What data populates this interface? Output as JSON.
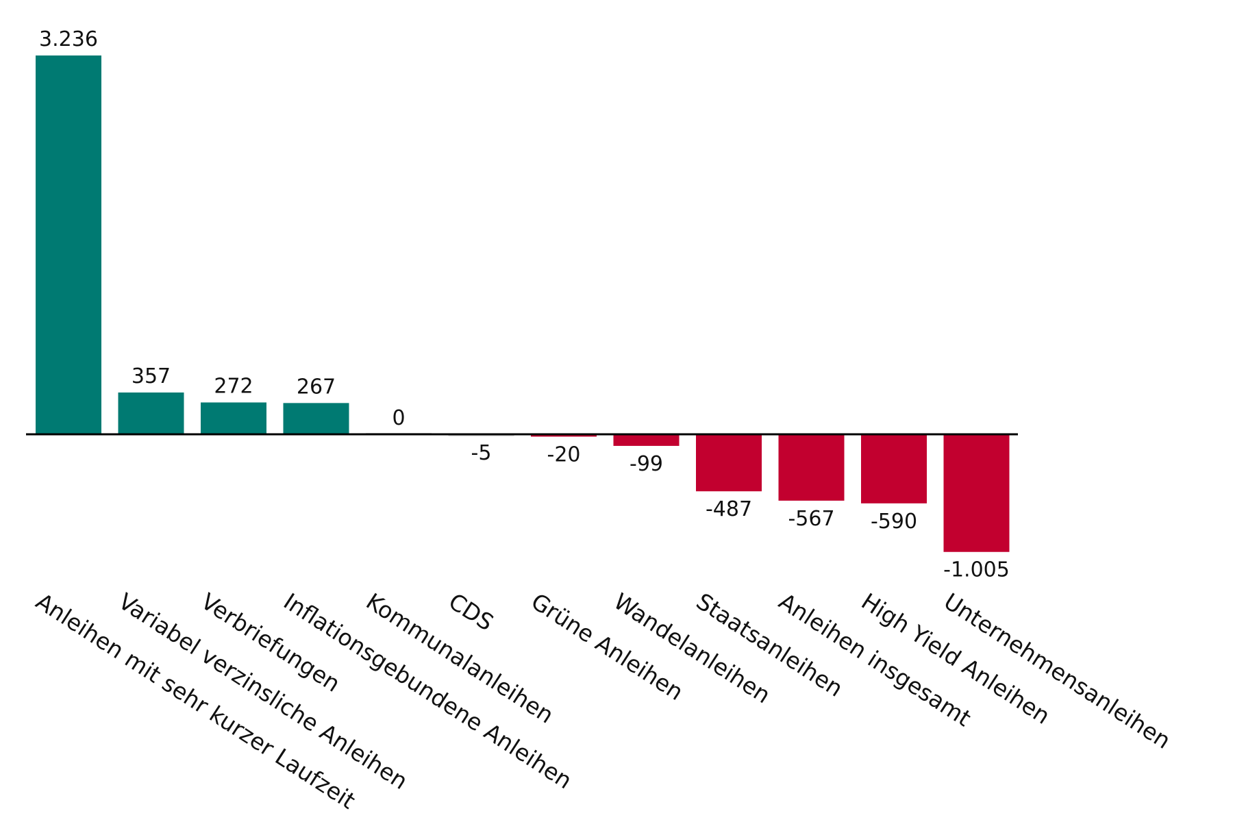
{
  "chart_data": {
    "type": "bar",
    "title": "",
    "xlabel": "",
    "ylabel": "",
    "categories": [
      "Anleihen mit sehr kurzer Laufzeit",
      "Variabel verzinsliche Anleihen",
      "Verbriefungen",
      "Inflationsgebundene Anleihen",
      "Kommunalanleihen",
      "CDS",
      "Grüne Anleihen",
      "Wandelanleihen",
      "Staatsanleihen",
      "Anleihen insgesamt",
      "High Yield Anleihen",
      "Unternehmensanleihen"
    ],
    "values": [
      3236,
      357,
      272,
      267,
      0,
      -5,
      -20,
      -99,
      -487,
      -567,
      -590,
      -1005
    ],
    "value_labels": [
      "3.236",
      "357",
      "272",
      "267",
      "0",
      "-5",
      "-20",
      "-99",
      "-487",
      "-567",
      "-590",
      "-1.005"
    ],
    "ylim": [
      -1005,
      3236
    ],
    "grid": false,
    "legend": "none",
    "colors": {
      "positive": "#007a72",
      "negative": "#c2002f",
      "zero": "#d9d9d9",
      "axis": "#000000"
    }
  }
}
